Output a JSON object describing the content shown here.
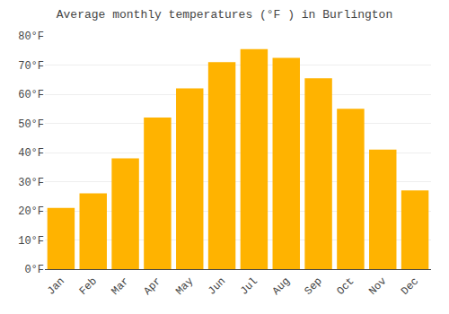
{
  "chart_data": {
    "type": "bar",
    "title": "Average monthly temperatures (°F ) in Burlington",
    "categories": [
      "Jan",
      "Feb",
      "Mar",
      "Apr",
      "May",
      "Jun",
      "Jul",
      "Aug",
      "Sep",
      "Oct",
      "Nov",
      "Dec"
    ],
    "values": [
      21,
      26,
      38,
      52,
      62,
      71,
      75.5,
      72.5,
      65.5,
      55,
      41,
      27
    ],
    "color": "#FFB300",
    "ylim": [
      0,
      80
    ],
    "yticks": [
      {
        "value": 0,
        "label": "0°F"
      },
      {
        "value": 10,
        "label": "10°F"
      },
      {
        "value": 20,
        "label": "20°F"
      },
      {
        "value": 30,
        "label": "30°F"
      },
      {
        "value": 40,
        "label": "40°F"
      },
      {
        "value": 50,
        "label": "50°F"
      },
      {
        "value": 60,
        "label": "60°F"
      },
      {
        "value": 70,
        "label": "70°F"
      },
      {
        "value": 80,
        "label": "80°F"
      }
    ],
    "grid": true
  }
}
